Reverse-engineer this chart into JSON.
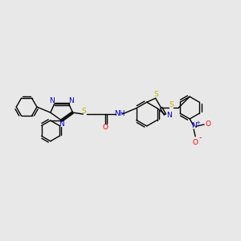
{
  "background_color": "#e8e8e8",
  "figsize": [
    3.0,
    3.0
  ],
  "dpi": 100,
  "colors": {
    "bond": "#000000",
    "N": "#0000cc",
    "S": "#ccaa00",
    "O": "#ff0000",
    "H": "#008888",
    "C": "#000000"
  },
  "lw": 1.0,
  "fs": 6.5
}
